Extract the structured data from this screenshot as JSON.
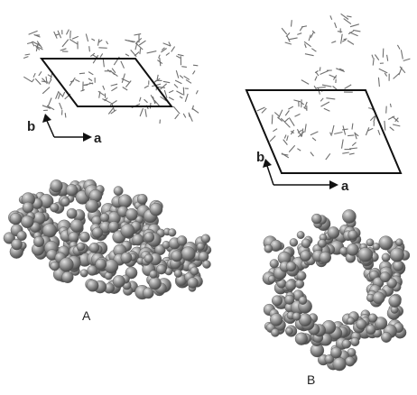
{
  "panels": [
    {
      "label": "A",
      "axes": {
        "a": "a",
        "b": "b"
      }
    },
    {
      "label": "B",
      "axes": {
        "a": "a",
        "b": "b"
      }
    }
  ],
  "colors": {
    "molecule_stroke": "#6f6f6f",
    "cell_stroke": "#111111",
    "sphere_fill": "#8a8a8a",
    "sphere_light": "#d8d8d8",
    "sphere_dark": "#3f3f3f",
    "background": "#ffffff"
  }
}
